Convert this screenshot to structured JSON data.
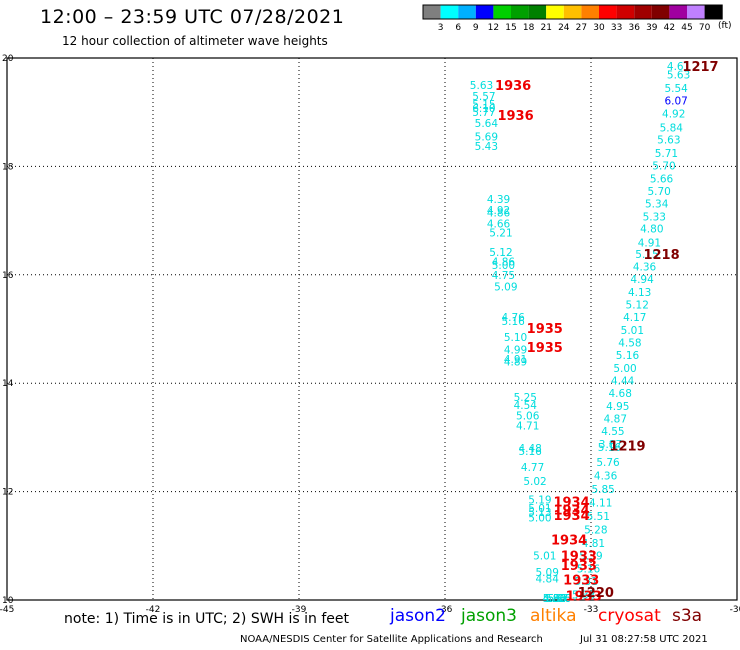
{
  "title": "12:00 – 23:59 UTC 07/28/2021",
  "subtitle": "12 hour collection of altimeter wave heights",
  "colorbar": {
    "unit_label": "(ft)",
    "ticks": [
      "3",
      "6",
      "9",
      "12",
      "15",
      "18",
      "21",
      "24",
      "27",
      "30",
      "33",
      "36",
      "39",
      "42",
      "45",
      "70"
    ],
    "colors": [
      "#7f7f7f",
      "#00ffff",
      "#00b0ff",
      "#0000ff",
      "#00d000",
      "#00a000",
      "#008000",
      "#ffff00",
      "#ffc000",
      "#ff8000",
      "#ff0000",
      "#d00000",
      "#a00000",
      "#800000",
      "#a000a0",
      "#c080ff",
      "#000000"
    ]
  },
  "note": "note:  1) Time is in UTC;  2) SWH is in feet",
  "satellites": [
    {
      "name": "jason2",
      "color": "#0000ff"
    },
    {
      "name": "jason3",
      "color": "#00a000"
    },
    {
      "name": "altika",
      "color": "#ff8000"
    },
    {
      "name": "cryosat",
      "color": "#ff0000"
    },
    {
      "name": "s3a",
      "color": "#800000"
    }
  ],
  "credit": "NOAA/NESDIS Center for Satellite Applications and Research",
  "timestamp": "Jul 31 08:27:58 UTC 2021",
  "chart_data": {
    "type": "scatter",
    "title": "12:00 – 23:59 UTC 07/28/2021",
    "xlabel": "",
    "ylabel": "",
    "xlim": [
      -45,
      -30
    ],
    "ylim": [
      10,
      20
    ],
    "grid": true,
    "x_ticks": [
      "-45",
      "-42",
      "-39",
      "-36",
      "-33",
      "-30"
    ],
    "y_ticks": [
      "10",
      "12",
      "14",
      "16",
      "18",
      "20"
    ],
    "swh_points": [
      {
        "lon": -35.25,
        "lat": 19.5,
        "v": "5.63",
        "c": "#00dddd"
      },
      {
        "lon": -35.2,
        "lat": 19.3,
        "v": "5.57",
        "c": "#00dddd"
      },
      {
        "lon": -35.2,
        "lat": 19.15,
        "v": "5.15",
        "c": "#00dddd"
      },
      {
        "lon": -35.2,
        "lat": 19.08,
        "v": "6.10",
        "c": "#00dddd"
      },
      {
        "lon": -35.2,
        "lat": 19.0,
        "v": "5.77",
        "c": "#00dddd"
      },
      {
        "lon": -35.15,
        "lat": 18.8,
        "v": "5.64",
        "c": "#00dddd"
      },
      {
        "lon": -35.15,
        "lat": 18.55,
        "v": "5.69",
        "c": "#00dddd"
      },
      {
        "lon": -35.15,
        "lat": 18.38,
        "v": "5.43",
        "c": "#00dddd"
      },
      {
        "lon": -34.9,
        "lat": 17.4,
        "v": "4.39",
        "c": "#00dddd"
      },
      {
        "lon": -34.9,
        "lat": 17.2,
        "v": "4.92",
        "c": "#00dddd"
      },
      {
        "lon": -34.9,
        "lat": 17.15,
        "v": "4.86",
        "c": "#00dddd"
      },
      {
        "lon": -34.9,
        "lat": 16.95,
        "v": "4.66",
        "c": "#00dddd"
      },
      {
        "lon": -34.85,
        "lat": 16.78,
        "v": "5.21",
        "c": "#00dddd"
      },
      {
        "lon": -34.85,
        "lat": 16.42,
        "v": "5.12",
        "c": "#00dddd"
      },
      {
        "lon": -34.8,
        "lat": 16.25,
        "v": "4.86",
        "c": "#00dddd"
      },
      {
        "lon": -34.8,
        "lat": 16.18,
        "v": "5.00",
        "c": "#00dddd"
      },
      {
        "lon": -34.8,
        "lat": 16.0,
        "v": "4.75",
        "c": "#00dddd"
      },
      {
        "lon": -34.75,
        "lat": 15.78,
        "v": "5.09",
        "c": "#00dddd"
      },
      {
        "lon": -34.6,
        "lat": 15.22,
        "v": "4.76",
        "c": "#00dddd"
      },
      {
        "lon": -34.6,
        "lat": 15.15,
        "v": "5.16",
        "c": "#00dddd"
      },
      {
        "lon": -34.55,
        "lat": 14.85,
        "v": "5.10",
        "c": "#00dddd"
      },
      {
        "lon": -34.55,
        "lat": 14.62,
        "v": "4.99",
        "c": "#00dddd"
      },
      {
        "lon": -34.55,
        "lat": 14.45,
        "v": "4.91",
        "c": "#00dddd"
      },
      {
        "lon": -34.55,
        "lat": 14.4,
        "v": "4.89",
        "c": "#00dddd"
      },
      {
        "lon": -34.35,
        "lat": 13.75,
        "v": "5.25",
        "c": "#00dddd"
      },
      {
        "lon": -34.35,
        "lat": 13.6,
        "v": "4.54",
        "c": "#00dddd"
      },
      {
        "lon": -34.3,
        "lat": 13.4,
        "v": "5.06",
        "c": "#00dddd"
      },
      {
        "lon": -34.3,
        "lat": 13.22,
        "v": "4.71",
        "c": "#00dddd"
      },
      {
        "lon": -34.25,
        "lat": 12.8,
        "v": "4.48",
        "c": "#00dddd"
      },
      {
        "lon": -34.25,
        "lat": 12.75,
        "v": "5.16",
        "c": "#00dddd"
      },
      {
        "lon": -34.2,
        "lat": 12.45,
        "v": "4.77",
        "c": "#00dddd"
      },
      {
        "lon": -34.15,
        "lat": 12.2,
        "v": "5.02",
        "c": "#00dddd"
      },
      {
        "lon": -34.05,
        "lat": 11.85,
        "v": "5.19",
        "c": "#00dddd"
      },
      {
        "lon": -34.05,
        "lat": 11.7,
        "v": "5.01",
        "c": "#00dddd"
      },
      {
        "lon": -34.05,
        "lat": 11.62,
        "v": "5.13",
        "c": "#00dddd"
      },
      {
        "lon": -34.05,
        "lat": 11.52,
        "v": "5.00",
        "c": "#00dddd"
      },
      {
        "lon": -33.95,
        "lat": 10.82,
        "v": "5.01",
        "c": "#00dddd"
      },
      {
        "lon": -33.9,
        "lat": 10.52,
        "v": "5.09",
        "c": "#00dddd"
      },
      {
        "lon": -33.9,
        "lat": 10.4,
        "v": "4.84",
        "c": "#00dddd"
      },
      {
        "lon": -33.75,
        "lat": 9.75,
        "v": "4.83",
        "c": "#00dddd"
      },
      {
        "lon": -33.75,
        "lat": 9.7,
        "v": "4.90",
        "c": "#00dddd"
      },
      {
        "lon": -33.75,
        "lat": 9.48,
        "v": "5.56",
        "c": "#00dddd"
      },
      {
        "lon": -33.7,
        "lat": 9.15,
        "v": "5.57",
        "c": "#00dddd"
      },
      {
        "lon": -33.65,
        "lat": 8.85,
        "v": "5.06",
        "c": "#00dddd"
      },
      {
        "lon": -33.65,
        "lat": 8.78,
        "v": "5.16",
        "c": "#00dddd"
      },
      {
        "lon": -31.2,
        "lat": 19.85,
        "v": "4.61",
        "c": "#00dddd"
      },
      {
        "lon": -31.2,
        "lat": 19.7,
        "v": "5.63",
        "c": "#00dddd"
      },
      {
        "lon": -31.25,
        "lat": 19.45,
        "v": "5.54",
        "c": "#00dddd"
      },
      {
        "lon": -31.25,
        "lat": 19.22,
        "v": "6.07",
        "c": "#0000ff"
      },
      {
        "lon": -31.3,
        "lat": 18.98,
        "v": "4.92",
        "c": "#00dddd"
      },
      {
        "lon": -31.35,
        "lat": 18.72,
        "v": "5.84",
        "c": "#00dddd"
      },
      {
        "lon": -31.4,
        "lat": 18.5,
        "v": "5.63",
        "c": "#00dddd"
      },
      {
        "lon": -31.45,
        "lat": 18.25,
        "v": "5.71",
        "c": "#00dddd"
      },
      {
        "lon": -31.5,
        "lat": 18.02,
        "v": "5.70",
        "c": "#00dddd"
      },
      {
        "lon": -31.55,
        "lat": 17.78,
        "v": "5.66",
        "c": "#00dddd"
      },
      {
        "lon": -31.6,
        "lat": 17.55,
        "v": "5.70",
        "c": "#00dddd"
      },
      {
        "lon": -31.65,
        "lat": 17.32,
        "v": "5.34",
        "c": "#00dddd"
      },
      {
        "lon": -31.7,
        "lat": 17.08,
        "v": "5.33",
        "c": "#00dddd"
      },
      {
        "lon": -31.75,
        "lat": 16.85,
        "v": "4.80",
        "c": "#00dddd"
      },
      {
        "lon": -31.8,
        "lat": 16.6,
        "v": "4.91",
        "c": "#00dddd"
      },
      {
        "lon": -31.85,
        "lat": 16.38,
        "v": "5.15",
        "c": "#00dddd"
      },
      {
        "lon": -31.9,
        "lat": 16.15,
        "v": "4.36",
        "c": "#00dddd"
      },
      {
        "lon": -31.95,
        "lat": 15.92,
        "v": "4.94",
        "c": "#00dddd"
      },
      {
        "lon": -32.0,
        "lat": 15.68,
        "v": "4.13",
        "c": "#00dddd"
      },
      {
        "lon": -32.05,
        "lat": 15.45,
        "v": "5.12",
        "c": "#00dddd"
      },
      {
        "lon": -32.1,
        "lat": 15.22,
        "v": "4.17",
        "c": "#00dddd"
      },
      {
        "lon": -32.15,
        "lat": 14.98,
        "v": "5.01",
        "c": "#00dddd"
      },
      {
        "lon": -32.2,
        "lat": 14.75,
        "v": "4.58",
        "c": "#00dddd"
      },
      {
        "lon": -32.25,
        "lat": 14.52,
        "v": "5.16",
        "c": "#00dddd"
      },
      {
        "lon": -32.3,
        "lat": 14.28,
        "v": "5.00",
        "c": "#00dddd"
      },
      {
        "lon": -32.35,
        "lat": 14.05,
        "v": "4.44",
        "c": "#00dddd"
      },
      {
        "lon": -32.4,
        "lat": 13.82,
        "v": "4.68",
        "c": "#00dddd"
      },
      {
        "lon": -32.45,
        "lat": 13.58,
        "v": "4.95",
        "c": "#00dddd"
      },
      {
        "lon": -32.5,
        "lat": 13.35,
        "v": "4.87",
        "c": "#00dddd"
      },
      {
        "lon": -32.55,
        "lat": 13.12,
        "v": "4.55",
        "c": "#00dddd"
      },
      {
        "lon": -32.6,
        "lat": 12.88,
        "v": "3.87",
        "c": "#00dddd"
      },
      {
        "lon": -32.62,
        "lat": 12.82,
        "v": "5.16",
        "c": "#00dddd"
      },
      {
        "lon": -32.65,
        "lat": 12.55,
        "v": "5.76",
        "c": "#00dddd"
      },
      {
        "lon": -32.7,
        "lat": 12.3,
        "v": "4.36",
        "c": "#00dddd"
      },
      {
        "lon": -32.75,
        "lat": 12.05,
        "v": "5.85",
        "c": "#00dddd"
      },
      {
        "lon": -32.8,
        "lat": 11.8,
        "v": "4.11",
        "c": "#00dddd"
      },
      {
        "lon": -32.85,
        "lat": 11.55,
        "v": "5.51",
        "c": "#00dddd"
      },
      {
        "lon": -32.9,
        "lat": 11.3,
        "v": "5.28",
        "c": "#00dddd"
      },
      {
        "lon": -32.95,
        "lat": 11.05,
        "v": "4.81",
        "c": "#00dddd"
      },
      {
        "lon": -33.0,
        "lat": 10.82,
        "v": "5.39",
        "c": "#00dddd"
      },
      {
        "lon": -33.05,
        "lat": 10.58,
        "v": "5.16",
        "c": "#00dddd"
      },
      {
        "lon": -33.1,
        "lat": 10.35,
        "v": "5.31",
        "c": "#00dddd"
      },
      {
        "lon": -33.15,
        "lat": 10.1,
        "v": "5.33",
        "c": "#00dddd"
      }
    ],
    "pass_times": [
      {
        "lon": -34.6,
        "lat": 19.5,
        "t": "1936",
        "c": "#ee0000"
      },
      {
        "lon": -34.55,
        "lat": 18.95,
        "t": "1936",
        "c": "#ee0000"
      },
      {
        "lon": -33.95,
        "lat": 15.02,
        "t": "1935",
        "c": "#ee0000"
      },
      {
        "lon": -33.95,
        "lat": 14.67,
        "t": "1935",
        "c": "#ee0000"
      },
      {
        "lon": -33.4,
        "lat": 11.82,
        "t": "1934",
        "c": "#ee0000"
      },
      {
        "lon": -33.4,
        "lat": 11.67,
        "t": "1934",
        "c": "#ee0000"
      },
      {
        "lon": -33.4,
        "lat": 11.57,
        "t": "1934",
        "c": "#ee0000"
      },
      {
        "lon": -33.45,
        "lat": 11.12,
        "t": "1934",
        "c": "#ee0000"
      },
      {
        "lon": -33.25,
        "lat": 10.82,
        "t": "1933",
        "c": "#ee0000"
      },
      {
        "lon": -33.25,
        "lat": 10.65,
        "t": "1933",
        "c": "#ee0000"
      },
      {
        "lon": -33.2,
        "lat": 10.38,
        "t": "1933",
        "c": "#ee0000"
      },
      {
        "lon": -33.15,
        "lat": 10.08,
        "t": "1933",
        "c": "#ee0000"
      },
      {
        "lon": -30.75,
        "lat": 19.85,
        "t": "1217",
        "c": "#800000"
      },
      {
        "lon": -31.55,
        "lat": 16.38,
        "t": "1218",
        "c": "#800000"
      },
      {
        "lon": -32.25,
        "lat": 12.85,
        "t": "1219",
        "c": "#800000"
      },
      {
        "lon": -32.9,
        "lat": 10.15,
        "t": "1220",
        "c": "#800000"
      }
    ]
  }
}
